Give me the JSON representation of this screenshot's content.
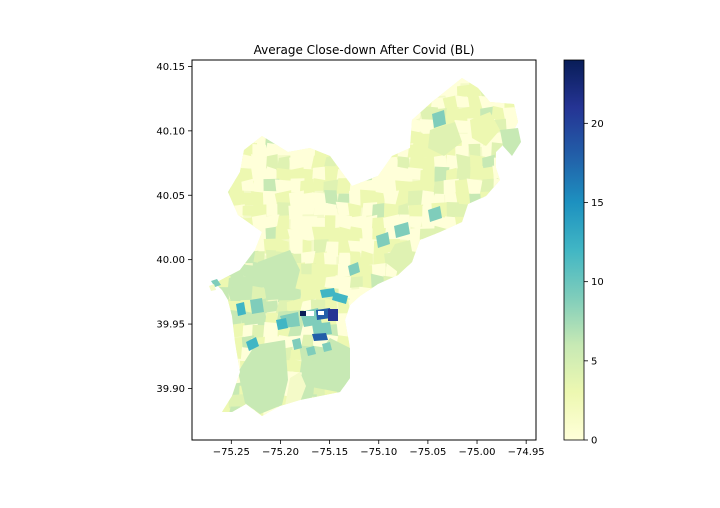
{
  "chart_data": {
    "type": "choropleth-map",
    "title": "Average Close-down After Covid (BL)",
    "xlabel": "",
    "ylabel": "",
    "x_ticks": [
      -75.25,
      -75.2,
      -75.15,
      -75.1,
      -75.05,
      -75.0,
      -74.95
    ],
    "x_tick_labels": [
      "−75.25",
      "−75.20",
      "−75.15",
      "−75.10",
      "−75.05",
      "−75.00",
      "−74.95"
    ],
    "y_ticks": [
      39.9,
      39.95,
      40.0,
      40.05,
      40.1,
      40.15
    ],
    "y_tick_labels": [
      "39.90",
      "39.95",
      "40.00",
      "40.05",
      "40.10",
      "40.15"
    ],
    "xlim": [
      -75.29,
      -74.94
    ],
    "ylim": [
      39.86,
      40.155
    ],
    "grid": false,
    "colormap": "YlGnBu",
    "colorbar": {
      "range": [
        0,
        24
      ],
      "ticks": [
        0,
        5,
        10,
        15,
        20
      ],
      "tick_labels": [
        "0",
        "5",
        "10",
        "15",
        "20"
      ]
    }
  },
  "colors": {
    "ramp": [
      "#ffffd9",
      "#edf8b1",
      "#c7e9b4",
      "#7fcdbb",
      "#41b6c4",
      "#1d91c0",
      "#225ea8",
      "#253494",
      "#081d58"
    ]
  }
}
